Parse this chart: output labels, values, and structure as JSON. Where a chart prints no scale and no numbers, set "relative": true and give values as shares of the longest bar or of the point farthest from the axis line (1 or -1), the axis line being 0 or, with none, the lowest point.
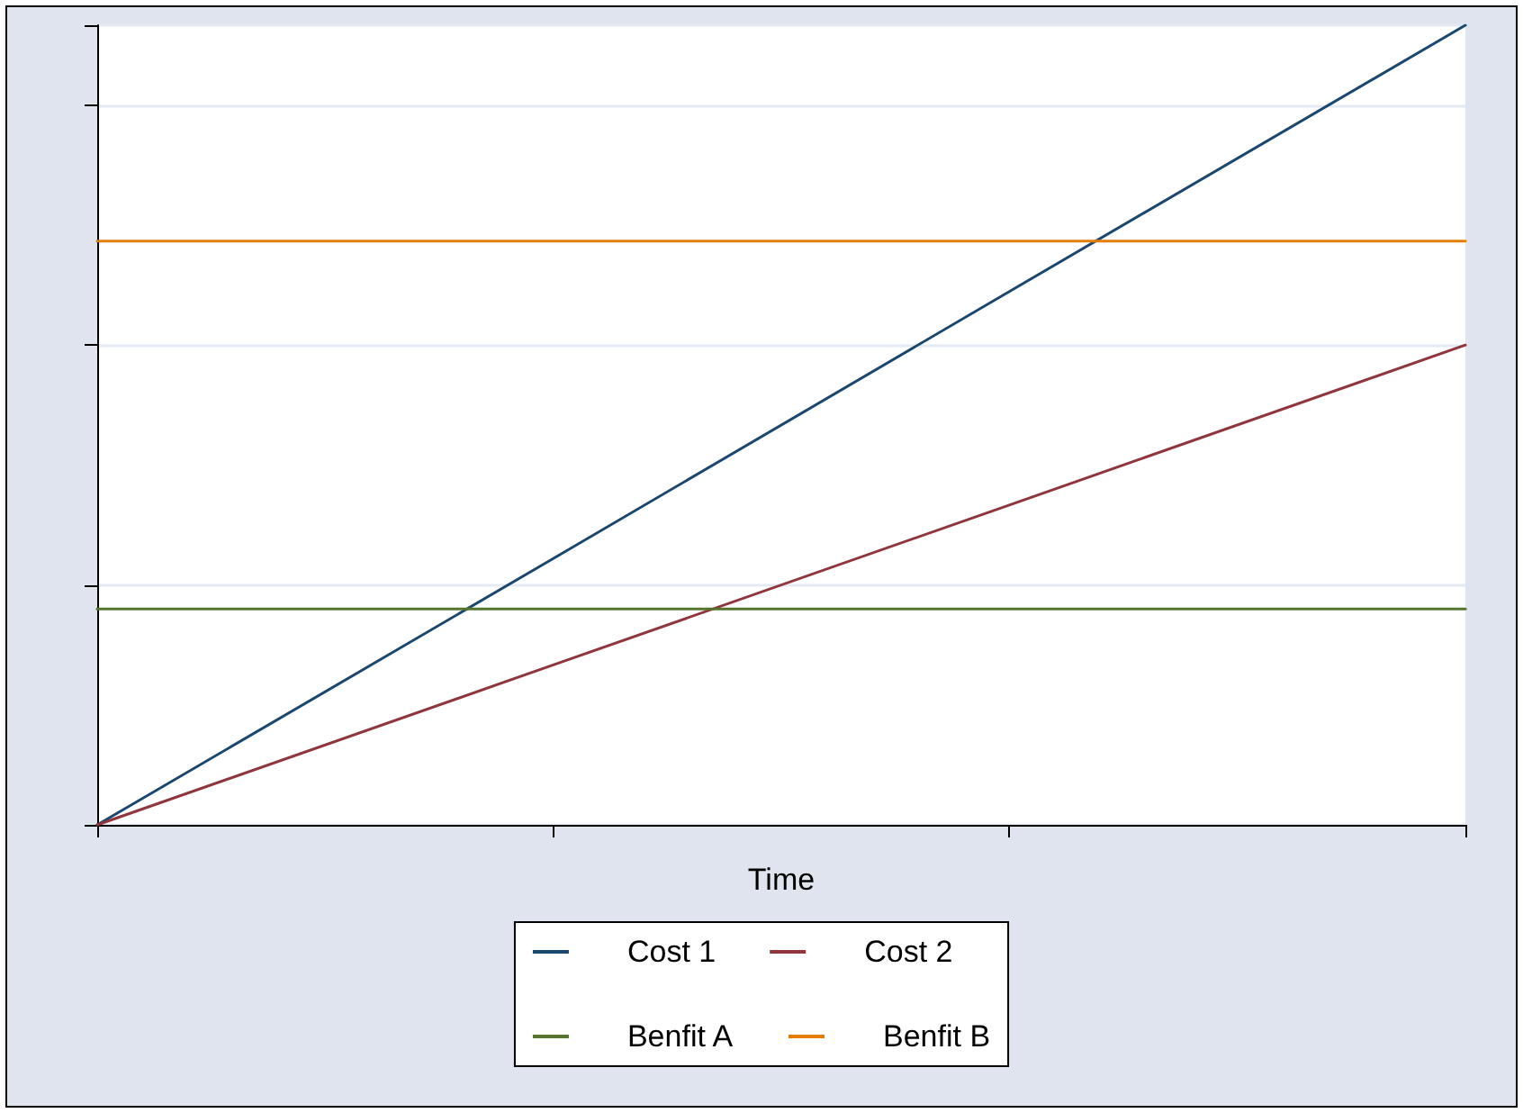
{
  "chart_data": {
    "type": "line",
    "xlabel": "Time",
    "categories": [
      null,
      null,
      null,
      null
    ],
    "relative": true,
    "grid": "y",
    "legend": "bottom",
    "marker": "none",
    "line_style": "solid",
    "series": [
      {
        "name": "Cost 1",
        "color": "#1a476f",
        "values": [
          0,
          0.333,
          0.667,
          1
        ]
      },
      {
        "name": "Cost 2",
        "color": "#90353b",
        "values": [
          0,
          0.2,
          0.4,
          0.6
        ]
      },
      {
        "name": "Benfit A",
        "color": "#55752f",
        "values": [
          0.27,
          0.27,
          0.27,
          0.27
        ]
      },
      {
        "name": "Benfit B",
        "color": "#e37e00",
        "values": [
          0.73,
          0.73,
          0.73,
          0.73
        ]
      }
    ]
  }
}
